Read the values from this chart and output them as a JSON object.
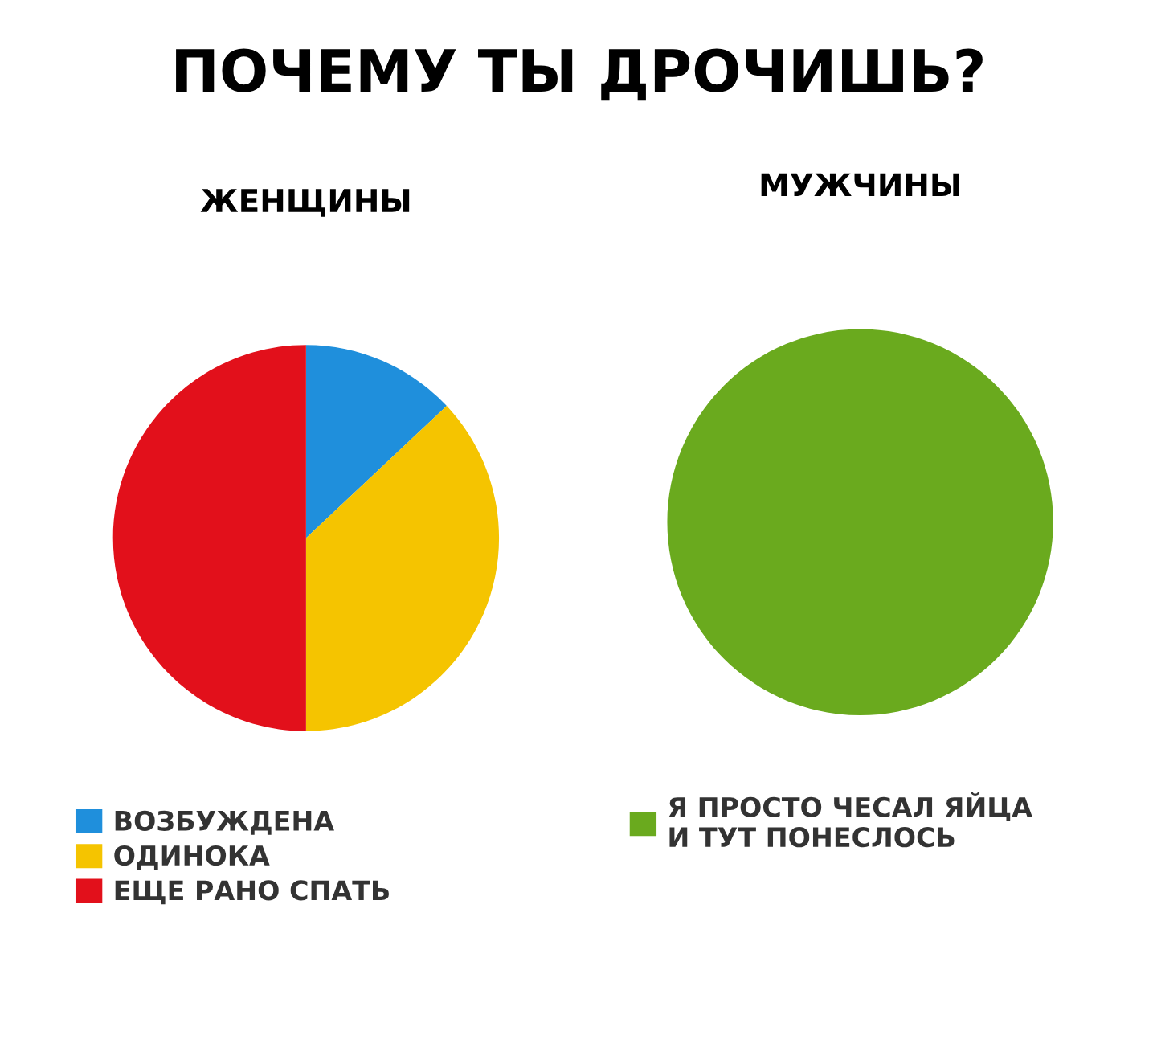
{
  "chart_data": [
    {
      "type": "pie",
      "title": "ПОЧЕМУ ТЫ ДРОЧИШЬ?",
      "subtitle": "ЖЕНЩИНЫ",
      "categories": [
        "ВОЗБУЖДЕНА",
        "ОДИНОКА",
        "ЕЩЕ РАНО СПАТЬ"
      ],
      "values": [
        13,
        37,
        50
      ],
      "colors": [
        "#1f8fdc",
        "#f5c400",
        "#e2101b"
      ],
      "legend": "bottom left"
    },
    {
      "type": "pie",
      "subtitle": "МУЖЧИНЫ",
      "categories": [
        "Я ПРОСТО ЧЕСАЛ ЯЙЦА\nИ ТУТ ПОНЕСЛОСЬ"
      ],
      "values": [
        100
      ],
      "colors": [
        "#6aaa1e"
      ],
      "legend": "bottom left"
    }
  ]
}
